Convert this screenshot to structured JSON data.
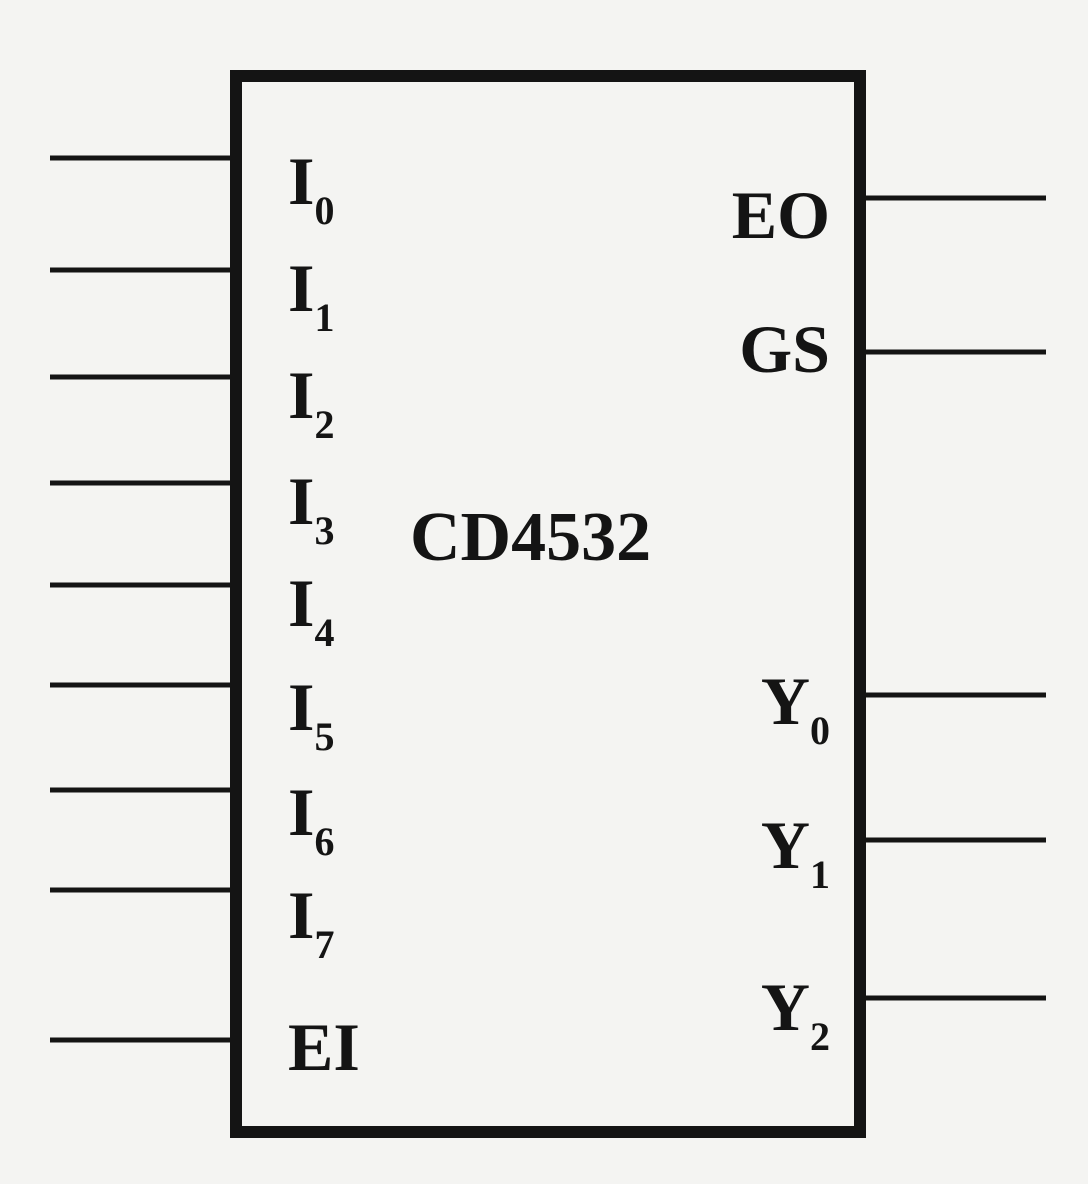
{
  "chip": {
    "name": "CD4532"
  },
  "inputs": [
    {
      "main": "I",
      "sub": "0"
    },
    {
      "main": "I",
      "sub": "1"
    },
    {
      "main": "I",
      "sub": "2"
    },
    {
      "main": "I",
      "sub": "3"
    },
    {
      "main": "I",
      "sub": "4"
    },
    {
      "main": "I",
      "sub": "5"
    },
    {
      "main": "I",
      "sub": "6"
    },
    {
      "main": "I",
      "sub": "7"
    },
    {
      "main": "EI",
      "sub": ""
    }
  ],
  "outputs": [
    {
      "main": "EO",
      "sub": ""
    },
    {
      "main": "GS",
      "sub": ""
    },
    {
      "main": "Y",
      "sub": "0"
    },
    {
      "main": "Y",
      "sub": "1"
    },
    {
      "main": "Y",
      "sub": "2"
    }
  ],
  "colors": {
    "ink": "#141414",
    "paper": "#f4f4f2"
  }
}
